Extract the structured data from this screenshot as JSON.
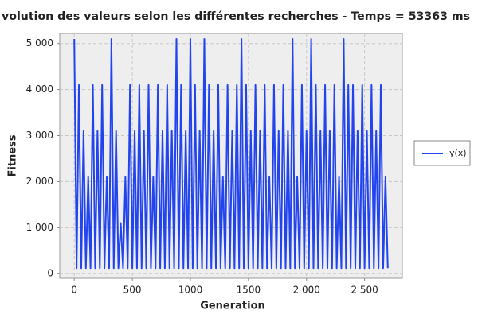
{
  "chart_data": {
    "type": "line",
    "title": "volution des valeurs selon les différentes recherches - Temps = 53363 ms",
    "xlabel": "Generation",
    "ylabel": "Fitness",
    "x": [
      0,
      20,
      40,
      60,
      80,
      100,
      120,
      140,
      160,
      180,
      200,
      220,
      240,
      260,
      280,
      300,
      320,
      340,
      360,
      380,
      400,
      420,
      440,
      460,
      480,
      500,
      520,
      540,
      560,
      580,
      600,
      620,
      640,
      660,
      680,
      700,
      720,
      740,
      760,
      780,
      800,
      820,
      840,
      860,
      880,
      900,
      920,
      940,
      960,
      980,
      1000,
      1020,
      1040,
      1060,
      1080,
      1100,
      1120,
      1140,
      1160,
      1180,
      1200,
      1220,
      1240,
      1260,
      1280,
      1300,
      1320,
      1340,
      1360,
      1380,
      1400,
      1420,
      1440,
      1460,
      1480,
      1500,
      1520,
      1540,
      1560,
      1580,
      1600,
      1620,
      1640,
      1660,
      1680,
      1700,
      1720,
      1740,
      1760,
      1780,
      1800,
      1820,
      1840,
      1860,
      1880,
      1900,
      1920,
      1940,
      1960,
      1980,
      2000,
      2020,
      2040,
      2060,
      2080,
      2100,
      2120,
      2140,
      2160,
      2180,
      2200,
      2220,
      2240,
      2260,
      2280,
      2300,
      2320,
      2340,
      2360,
      2380,
      2400,
      2420,
      2440,
      2460,
      2480,
      2500,
      2520,
      2540,
      2560,
      2580,
      2600,
      2620,
      2640,
      2660,
      2680,
      2700
    ],
    "series": [
      {
        "name": "y(x)",
        "color": "#2244ee",
        "values": [
          5100,
          120,
          4100,
          120,
          3100,
          120,
          2100,
          120,
          4100,
          120,
          3100,
          120,
          4100,
          120,
          2100,
          120,
          5100,
          120,
          3100,
          120,
          1100,
          120,
          2100,
          120,
          4100,
          120,
          3100,
          120,
          4100,
          120,
          3100,
          120,
          4100,
          120,
          2100,
          120,
          4100,
          120,
          3100,
          120,
          4100,
          120,
          3100,
          120,
          5100,
          120,
          4100,
          120,
          3100,
          120,
          5100,
          120,
          4100,
          120,
          3100,
          120,
          5100,
          120,
          4100,
          120,
          3100,
          120,
          4100,
          120,
          2100,
          120,
          4100,
          120,
          3100,
          120,
          4100,
          120,
          5100,
          120,
          4100,
          120,
          3100,
          120,
          4100,
          120,
          3100,
          120,
          4100,
          120,
          2100,
          120,
          4100,
          120,
          3100,
          120,
          4100,
          120,
          3100,
          120,
          5100,
          120,
          2100,
          120,
          4100,
          120,
          3100,
          120,
          5100,
          120,
          4100,
          120,
          3100,
          120,
          4100,
          120,
          3100,
          120,
          4100,
          120,
          2100,
          120,
          5100,
          120,
          4100,
          120,
          4100,
          120,
          3100,
          120,
          4100,
          120,
          3100,
          120,
          4100,
          120,
          3100,
          120,
          4100,
          120,
          2100,
          120
        ]
      }
    ],
    "xlim": [
      -125,
      2825
    ],
    "xticks": [
      0,
      500,
      1000,
      1500,
      {
        "value": 2000,
        "label": "2 000"
      },
      {
        "value": 2500,
        "label": "2 500"
      }
    ],
    "ylim": [
      -100,
      5220
    ],
    "yticks": [
      0,
      {
        "value": 1000,
        "label": "1 000"
      },
      {
        "value": 2000,
        "label": "2 000"
      },
      {
        "value": 3000,
        "label": "3 000"
      },
      {
        "value": 4000,
        "label": "4 000"
      },
      {
        "value": 5000,
        "label": "5 000"
      }
    ],
    "grid": true,
    "legend": "right"
  }
}
